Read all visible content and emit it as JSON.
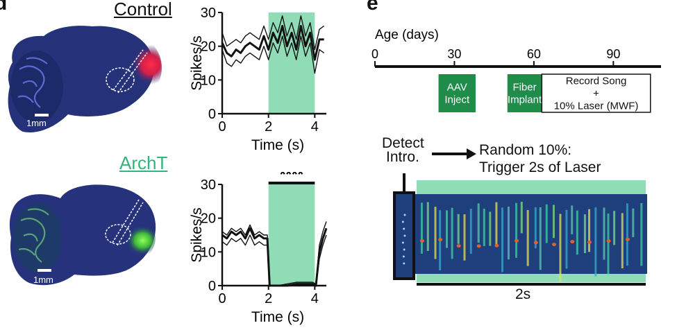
{
  "panel_letters": {
    "left": "d",
    "right": "e"
  },
  "brains": {
    "control": {
      "label": "Control",
      "scale_bar": "1mm"
    },
    "archt": {
      "label": "ArchT",
      "scale_bar": "1mm"
    }
  },
  "chart_data": [
    {
      "type": "line",
      "title": "",
      "ylabel": "Spikes/s",
      "xlabel": "Time (s)",
      "xlim": [
        0,
        4.5
      ],
      "ylim": [
        0,
        30
      ],
      "xticks": [
        "0",
        "2",
        "4"
      ],
      "yticks": [
        "0",
        "10",
        "20",
        "30"
      ],
      "shaded_interval": [
        2,
        4
      ],
      "annotation": "",
      "x": [
        0,
        0.2,
        0.4,
        0.6,
        0.8,
        1.0,
        1.2,
        1.4,
        1.6,
        1.8,
        2.0,
        2.2,
        2.4,
        2.6,
        2.8,
        3.0,
        3.2,
        3.4,
        3.6,
        3.8,
        4.0,
        4.2,
        4.4
      ],
      "series": [
        {
          "name": "upper",
          "values": [
            24,
            20,
            21,
            22,
            21,
            23,
            24,
            23,
            22,
            26,
            22,
            27,
            24,
            29,
            23,
            27,
            22,
            29,
            23,
            27,
            19,
            25,
            26
          ]
        },
        {
          "name": "mean",
          "values": [
            21,
            18,
            17,
            19,
            18,
            20,
            21,
            20,
            19,
            23,
            19,
            24,
            21,
            26,
            20,
            24,
            19,
            26,
            20,
            24,
            16,
            22,
            22
          ]
        },
        {
          "name": "lower",
          "values": [
            19,
            15,
            14,
            16,
            15,
            17,
            18,
            17,
            16,
            20,
            16,
            21,
            18,
            23,
            17,
            21,
            16,
            23,
            17,
            21,
            12,
            19,
            18
          ]
        }
      ]
    },
    {
      "type": "line",
      "title": "",
      "ylabel": "Spikes/s",
      "xlabel": "Time (s)",
      "xlim": [
        0,
        4.5
      ],
      "ylim": [
        0,
        30
      ],
      "xticks": [
        "0",
        "2",
        "4"
      ],
      "yticks": [
        "0",
        "10",
        "20",
        "30"
      ],
      "shaded_interval": [
        2,
        4
      ],
      "annotation": "****",
      "x": [
        0,
        0.2,
        0.4,
        0.6,
        0.8,
        1.0,
        1.2,
        1.4,
        1.6,
        1.8,
        1.95,
        2.05,
        2.4,
        2.8,
        3.2,
        3.6,
        3.9,
        4.05,
        4.2,
        4.35,
        4.5
      ],
      "series": [
        {
          "name": "upper",
          "values": [
            16,
            15,
            17,
            16,
            17,
            15,
            18,
            15,
            16,
            15,
            15,
            0,
            0,
            0.5,
            1,
            1,
            1,
            0.5,
            12,
            16,
            19
          ]
        },
        {
          "name": "mean",
          "values": [
            15,
            14,
            16,
            15,
            16,
            14,
            17,
            14,
            15,
            14,
            14,
            0,
            0,
            0,
            0.5,
            0.5,
            0.5,
            0,
            10,
            14,
            17
          ]
        },
        {
          "name": "lower",
          "values": [
            13,
            12,
            14,
            13,
            14,
            12,
            15,
            12,
            13,
            12,
            12,
            0,
            0,
            0,
            0,
            0,
            0,
            0,
            8,
            12,
            15
          ]
        }
      ]
    }
  ],
  "timeline": {
    "title": "Age (days)",
    "ticks": [
      "0",
      "30",
      "60",
      "90"
    ],
    "tick_values": [
      0,
      30,
      60,
      90
    ],
    "axis_max": 108,
    "boxes": [
      {
        "label_line1": "AAV",
        "label_line2": "Inject",
        "start_day": 24,
        "end_day": 38
      },
      {
        "label_line1": "Fiber",
        "label_line2": "Implant",
        "start_day": 50,
        "end_day": 63
      },
      {
        "label_line1": "Record Song",
        "label_line2": "+",
        "label_line3": "10% Laser (MWF)",
        "start_day": 63,
        "end_day": 104
      }
    ]
  },
  "protocol": {
    "detect": "Detect",
    "intro": "Intro.",
    "random": "Random 10%:",
    "trigger": "Trigger 2s of Laser",
    "duration_label": "2s"
  },
  "colors": {
    "laser_green": "#8fdcb7",
    "box_green": "#1f8c4a",
    "archt_green": "#2fb67a",
    "brain_blue": "#25327a",
    "spectrogram_bg": "#1f3e7c"
  }
}
